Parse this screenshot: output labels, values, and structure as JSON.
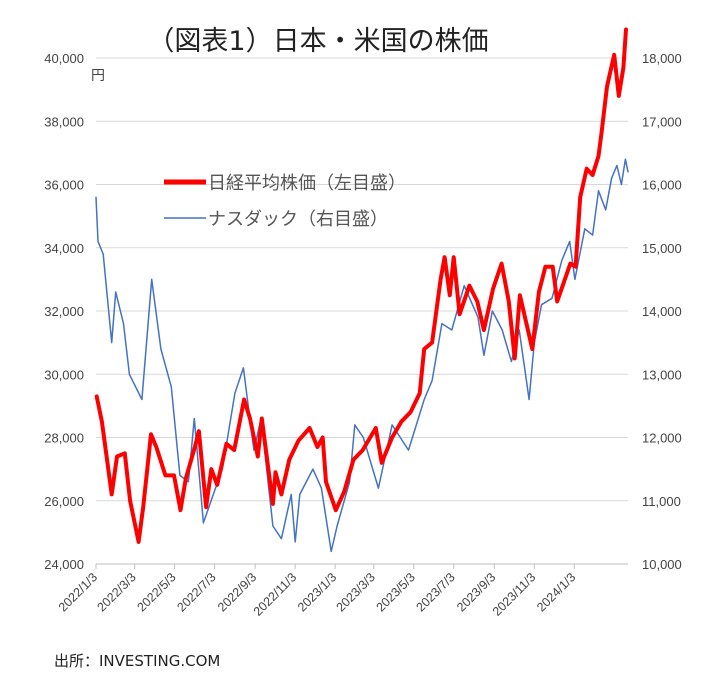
{
  "chart_data": {
    "type": "line",
    "title": "（図表1）日本・米国の株価",
    "left_axis": {
      "unit": "円",
      "ylim": [
        24000,
        40000
      ],
      "ticks": [
        "24,000",
        "26,000",
        "28,000",
        "30,000",
        "32,000",
        "34,000",
        "36,000",
        "38,000",
        "40,000"
      ]
    },
    "right_axis": {
      "ylim": [
        10000,
        18000
      ],
      "ticks": [
        "10,000",
        "11,000",
        "12,000",
        "13,000",
        "14,000",
        "15,000",
        "16,000",
        "17,000",
        "18,000"
      ]
    },
    "x_range": [
      "2022-01-03",
      "2024-03-25"
    ],
    "x_tick_labels": [
      {
        "label": "2022/1/3",
        "date": "2022-01-03"
      },
      {
        "label": "2022/3/3",
        "date": "2022-03-03"
      },
      {
        "label": "2022/5/3",
        "date": "2022-05-03"
      },
      {
        "label": "2022/7/3",
        "date": "2022-07-03"
      },
      {
        "label": "2022/9/3",
        "date": "2022-09-03"
      },
      {
        "label": "2022/11/3",
        "date": "2022-11-03"
      },
      {
        "label": "2023/1/3",
        "date": "2023-01-03"
      },
      {
        "label": "2023/3/3",
        "date": "2023-03-03"
      },
      {
        "label": "2023/5/3",
        "date": "2023-05-03"
      },
      {
        "label": "2023/7/3",
        "date": "2023-07-03"
      },
      {
        "label": "2023/9/3",
        "date": "2023-09-03"
      },
      {
        "label": "2023/11/3",
        "date": "2023-11-03"
      },
      {
        "label": "2024/1/3",
        "date": "2024-01-03"
      }
    ],
    "legend_position": "upper-left-center",
    "grid": true,
    "series": [
      {
        "name": "日経平均株価（左目盛）",
        "axis": "left",
        "color": "#ff0000",
        "points": [
          [
            "2022-01-04",
            29300
          ],
          [
            "2022-01-12",
            28500
          ],
          [
            "2022-01-27",
            26200
          ],
          [
            "2022-02-04",
            27400
          ],
          [
            "2022-02-16",
            27500
          ],
          [
            "2022-02-24",
            26000
          ],
          [
            "2022-03-09",
            24700
          ],
          [
            "2022-03-16",
            25800
          ],
          [
            "2022-03-28",
            28100
          ],
          [
            "2022-04-05",
            27700
          ],
          [
            "2022-04-19",
            26800
          ],
          [
            "2022-05-02",
            26800
          ],
          [
            "2022-05-12",
            25700
          ],
          [
            "2022-05-20",
            26700
          ],
          [
            "2022-06-03",
            27700
          ],
          [
            "2022-06-09",
            28200
          ],
          [
            "2022-06-20",
            25800
          ],
          [
            "2022-06-28",
            27000
          ],
          [
            "2022-07-07",
            26500
          ],
          [
            "2022-07-21",
            27800
          ],
          [
            "2022-08-02",
            27600
          ],
          [
            "2022-08-17",
            29200
          ],
          [
            "2022-08-26",
            28600
          ],
          [
            "2022-09-07",
            27400
          ],
          [
            "2022-09-13",
            28600
          ],
          [
            "2022-09-30",
            25900
          ],
          [
            "2022-10-04",
            26900
          ],
          [
            "2022-10-13",
            26200
          ],
          [
            "2022-10-25",
            27300
          ],
          [
            "2022-11-08",
            27900
          ],
          [
            "2022-11-25",
            28300
          ],
          [
            "2022-12-07",
            27700
          ],
          [
            "2022-12-15",
            28000
          ],
          [
            "2022-12-20",
            26600
          ],
          [
            "2023-01-04",
            25700
          ],
          [
            "2023-01-17",
            26300
          ],
          [
            "2023-01-31",
            27300
          ],
          [
            "2023-02-14",
            27600
          ],
          [
            "2023-03-06",
            28300
          ],
          [
            "2023-03-15",
            27200
          ],
          [
            "2023-03-31",
            28000
          ],
          [
            "2023-04-14",
            28500
          ],
          [
            "2023-04-28",
            28800
          ],
          [
            "2023-05-12",
            29400
          ],
          [
            "2023-05-19",
            30800
          ],
          [
            "2023-05-31",
            31000
          ],
          [
            "2023-06-13",
            33000
          ],
          [
            "2023-06-19",
            33700
          ],
          [
            "2023-06-27",
            32500
          ],
          [
            "2023-07-03",
            33700
          ],
          [
            "2023-07-12",
            31900
          ],
          [
            "2023-07-27",
            32800
          ],
          [
            "2023-08-08",
            32300
          ],
          [
            "2023-08-18",
            31400
          ],
          [
            "2023-09-01",
            32700
          ],
          [
            "2023-09-14",
            33500
          ],
          [
            "2023-09-25",
            32300
          ],
          [
            "2023-10-04",
            30500
          ],
          [
            "2023-10-12",
            32500
          ],
          [
            "2023-10-31",
            30800
          ],
          [
            "2023-11-10",
            32600
          ],
          [
            "2023-11-20",
            33400
          ],
          [
            "2023-12-01",
            33400
          ],
          [
            "2023-12-08",
            32300
          ],
          [
            "2023-12-28",
            33500
          ],
          [
            "2024-01-05",
            33400
          ],
          [
            "2024-01-12",
            35600
          ],
          [
            "2024-01-22",
            36500
          ],
          [
            "2024-01-31",
            36300
          ],
          [
            "2024-02-09",
            36900
          ],
          [
            "2024-02-14",
            37700
          ],
          [
            "2024-02-22",
            39100
          ],
          [
            "2024-03-04",
            40100
          ],
          [
            "2024-03-11",
            38800
          ],
          [
            "2024-03-18",
            39700
          ],
          [
            "2024-03-22",
            40900
          ]
        ]
      },
      {
        "name": "ナスダック（右目盛）",
        "axis": "right",
        "color": "#4472c4",
        "points": [
          [
            "2022-01-03",
            15800
          ],
          [
            "2022-01-06",
            15100
          ],
          [
            "2022-01-14",
            14900
          ],
          [
            "2022-01-27",
            13500
          ],
          [
            "2022-02-02",
            14300
          ],
          [
            "2022-02-14",
            13800
          ],
          [
            "2022-02-23",
            13000
          ],
          [
            "2022-03-14",
            12600
          ],
          [
            "2022-03-29",
            14500
          ],
          [
            "2022-04-12",
            13400
          ],
          [
            "2022-04-28",
            12800
          ],
          [
            "2022-05-11",
            11400
          ],
          [
            "2022-05-24",
            11300
          ],
          [
            "2022-06-02",
            12300
          ],
          [
            "2022-06-16",
            10650
          ],
          [
            "2022-07-01",
            11100
          ],
          [
            "2022-07-15",
            11500
          ],
          [
            "2022-08-03",
            12700
          ],
          [
            "2022-08-16",
            13100
          ],
          [
            "2022-09-01",
            11800
          ],
          [
            "2022-09-12",
            12300
          ],
          [
            "2022-09-30",
            10600
          ],
          [
            "2022-10-13",
            10400
          ],
          [
            "2022-10-28",
            11100
          ],
          [
            "2022-11-03",
            10350
          ],
          [
            "2022-11-10",
            11100
          ],
          [
            "2022-11-30",
            11500
          ],
          [
            "2022-12-13",
            11200
          ],
          [
            "2022-12-28",
            10200
          ],
          [
            "2023-01-06",
            10600
          ],
          [
            "2023-01-25",
            11300
          ],
          [
            "2023-02-02",
            12200
          ],
          [
            "2023-02-15",
            12000
          ],
          [
            "2023-03-10",
            11200
          ],
          [
            "2023-03-31",
            12200
          ],
          [
            "2023-04-25",
            11800
          ],
          [
            "2023-05-19",
            12600
          ],
          [
            "2023-05-31",
            12900
          ],
          [
            "2023-06-15",
            13800
          ],
          [
            "2023-06-30",
            13700
          ],
          [
            "2023-07-19",
            14400
          ],
          [
            "2023-08-09",
            13900
          ],
          [
            "2023-08-18",
            13300
          ],
          [
            "2023-08-31",
            14000
          ],
          [
            "2023-09-15",
            13700
          ],
          [
            "2023-09-29",
            13200
          ],
          [
            "2023-10-11",
            13700
          ],
          [
            "2023-10-26",
            12600
          ],
          [
            "2023-11-03",
            13500
          ],
          [
            "2023-11-14",
            14100
          ],
          [
            "2023-11-30",
            14200
          ],
          [
            "2023-12-15",
            14800
          ],
          [
            "2023-12-27",
            15100
          ],
          [
            "2024-01-04",
            14500
          ],
          [
            "2024-01-19",
            15300
          ],
          [
            "2024-01-31",
            15200
          ],
          [
            "2024-02-09",
            15900
          ],
          [
            "2024-02-20",
            15600
          ],
          [
            "2024-02-29",
            16100
          ],
          [
            "2024-03-08",
            16300
          ],
          [
            "2024-03-15",
            16000
          ],
          [
            "2024-03-21",
            16400
          ],
          [
            "2024-03-25",
            16200
          ]
        ]
      }
    ]
  },
  "source": "出所：INVESTING.COM"
}
